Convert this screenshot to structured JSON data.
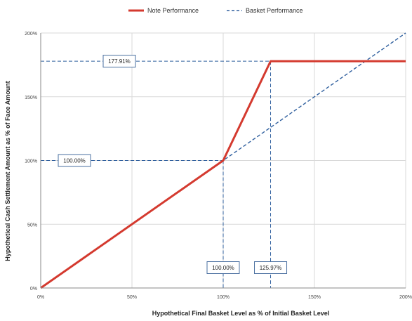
{
  "chart_data": {
    "type": "line",
    "xlabel": "Hypothetical Final Basket Level as % of Initial Basket Level",
    "ylabel": "Hypothetical Cash Settlement Amount as % of Face Amount",
    "xlim": [
      0,
      200
    ],
    "ylim": [
      0,
      200
    ],
    "x_ticks": [
      "0%",
      "50%",
      "100%",
      "150%",
      "200%"
    ],
    "y_ticks": [
      "0%",
      "50%",
      "100%",
      "150%",
      "200%"
    ],
    "grid": true,
    "legend_position": "top",
    "series": [
      {
        "name": "Note Performance",
        "style": "solid",
        "color": "#d43a2f",
        "x": [
          0,
          100,
          125.97,
          200
        ],
        "y": [
          0,
          100,
          177.91,
          177.91
        ]
      },
      {
        "name": "Basket Performance",
        "style": "dashed",
        "color": "#2f5f9e",
        "x": [
          0,
          200
        ],
        "y": [
          0,
          200
        ]
      }
    ],
    "annotations": [
      {
        "label": "177.91%",
        "kind": "y-reference",
        "value": 177.91
      },
      {
        "label": "100.00%",
        "kind": "y-reference",
        "value": 100
      },
      {
        "label": "100.00%",
        "kind": "x-reference",
        "value": 100
      },
      {
        "label": "125.97%",
        "kind": "x-reference",
        "value": 125.97
      }
    ]
  }
}
